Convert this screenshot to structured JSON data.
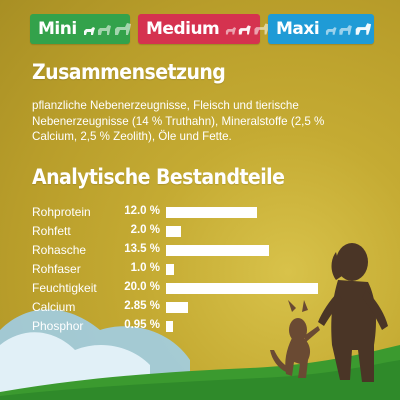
{
  "colors": {
    "mini": "#33a24b",
    "medium": "#d5324f",
    "maxi": "#1f9bd6",
    "background": "#c5ab33",
    "text": "#ffffff"
  },
  "sizes": [
    {
      "label": "Mini",
      "dogs_icon": "dog-sizes-icon",
      "highlight": 1
    },
    {
      "label": "Medium",
      "dogs_icon": "dog-sizes-icon",
      "highlight": 2
    },
    {
      "label": "Maxi",
      "dogs_icon": "dog-sizes-icon",
      "highlight": 3
    }
  ],
  "composition": {
    "title": "Zusammensetzung",
    "text": "pflanzliche Nebenerzeugnisse, Fleisch und tierische Nebenerzeugnisse (14 % Truthahn), Mineralstoffe (2,5 % Calcium, 2,5 % Zeolith), Öle und Fette."
  },
  "analysis": {
    "title": "Analytische Bestandteile",
    "max_value": 20.0,
    "rows": [
      {
        "name": "Rohprotein",
        "value": 12.0,
        "label": "12.0 %"
      },
      {
        "name": "Rohfett",
        "value": 2.0,
        "label": "2.0 %"
      },
      {
        "name": "Rohasche",
        "value": 13.5,
        "label": "13.5 %"
      },
      {
        "name": "Rohfaser",
        "value": 1.0,
        "label": "1.0 %"
      },
      {
        "name": "Feuchtigkeit",
        "value": 20.0,
        "label": "20.0 %"
      },
      {
        "name": "Calcium",
        "value": 2.85,
        "label": "2.85 %"
      },
      {
        "name": "Phosphor",
        "value": 0.95,
        "label": "0.95 %"
      }
    ]
  },
  "illustration": {
    "scene_icon": "child-and-dog-silhouette-icon"
  }
}
